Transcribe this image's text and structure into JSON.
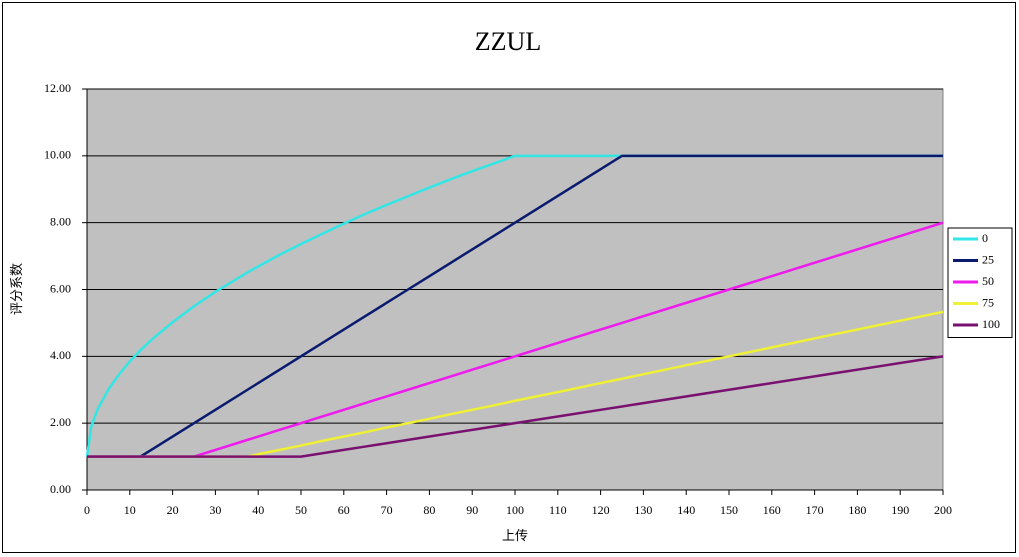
{
  "chart_data": {
    "type": "line",
    "title": "ZZUL",
    "x_label": "上传",
    "y_label": "评分系数",
    "x": [
      0,
      1,
      2.5,
      5,
      7.5,
      10,
      12.5,
      15,
      20,
      25,
      30,
      37.5,
      40,
      45,
      50,
      55,
      60,
      65,
      70,
      75,
      80,
      85,
      90,
      95,
      100,
      110,
      120,
      125,
      150,
      175,
      200
    ],
    "series": [
      {
        "name": "0",
        "color": "#33e6e6",
        "values": [
          1,
          1.9,
          2.42,
          3.01,
          3.46,
          3.85,
          4.18,
          4.49,
          5.02,
          5.5,
          5.93,
          6.51,
          6.69,
          7.04,
          7.36,
          7.67,
          7.97,
          8.26,
          8.53,
          8.79,
          9.05,
          9.3,
          9.54,
          9.77,
          10,
          10,
          10,
          10,
          10,
          10,
          10
        ]
      },
      {
        "name": "25",
        "color": "#0a1a6e",
        "values": [
          1,
          1,
          1,
          1,
          1,
          1,
          1,
          1.2,
          1.6,
          2,
          2.4,
          3,
          3.2,
          3.6,
          4,
          4.4,
          4.8,
          5.2,
          5.6,
          6,
          6.4,
          6.8,
          7.2,
          7.6,
          8,
          8.8,
          9.6,
          10,
          10,
          10,
          10
        ]
      },
      {
        "name": "50",
        "color": "#ee1aee",
        "values": [
          1,
          1,
          1,
          1,
          1,
          1,
          1,
          1,
          1,
          1,
          1.2,
          1.5,
          1.6,
          1.8,
          2,
          2.2,
          2.4,
          2.6,
          2.8,
          3,
          3.2,
          3.4,
          3.6,
          3.8,
          4,
          4.4,
          4.8,
          5,
          6,
          7,
          8
        ]
      },
      {
        "name": "75",
        "color": "#f0f035",
        "values": [
          1,
          1,
          1,
          1,
          1,
          1,
          1,
          1,
          1,
          1,
          1,
          1,
          1.07,
          1.2,
          1.33,
          1.47,
          1.6,
          1.73,
          1.87,
          2,
          2.13,
          2.27,
          2.4,
          2.53,
          2.67,
          2.93,
          3.2,
          3.33,
          4,
          4.67,
          5.33
        ]
      },
      {
        "name": "100",
        "color": "#7a1070",
        "values": [
          1,
          1,
          1,
          1,
          1,
          1,
          1,
          1,
          1,
          1,
          1,
          1,
          1,
          1,
          1,
          1.1,
          1.2,
          1.3,
          1.4,
          1.5,
          1.6,
          1.7,
          1.8,
          1.9,
          2,
          2.2,
          2.4,
          2.5,
          3,
          3.5,
          4
        ]
      }
    ],
    "xlim": [
      0,
      200
    ],
    "xticks": [
      0,
      10,
      20,
      30,
      40,
      50,
      60,
      70,
      80,
      90,
      100,
      110,
      120,
      130,
      140,
      150,
      160,
      170,
      180,
      190,
      200
    ],
    "ylim": [
      0,
      12
    ],
    "yticks": [
      {
        "value": 0,
        "label": "0.00"
      },
      {
        "value": 2,
        "label": "2.00"
      },
      {
        "value": 4,
        "label": "4.00"
      },
      {
        "value": 6,
        "label": "6.00"
      },
      {
        "value": 8,
        "label": "8.00"
      },
      {
        "value": 10,
        "label": "10.00"
      },
      {
        "value": 12,
        "label": "12.00"
      }
    ],
    "grid": true,
    "legend": "right",
    "plot_background": "#c0c0c0"
  }
}
